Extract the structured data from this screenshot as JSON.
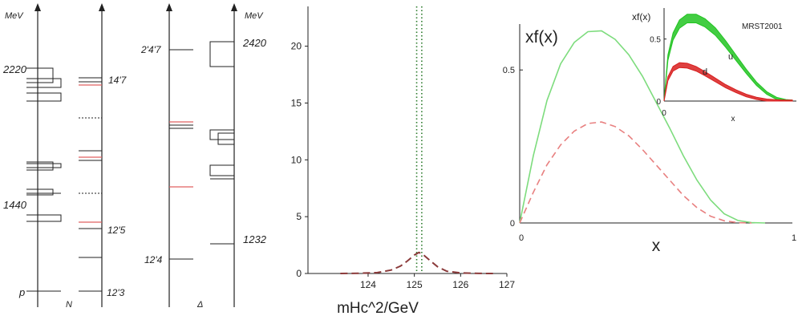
{
  "colors": {
    "ink": "#222222",
    "red_level": "#e06060",
    "green_dotted": "#2a7a2a",
    "dashed_peak": "#8b3a3a",
    "u_curve": "#7ddc7d",
    "d_curve": "#e88080",
    "inset_u": "#22c422",
    "inset_d": "#d81f1f"
  },
  "chart_data": [
    {
      "type": "table",
      "name": "nucleon-spectrum",
      "labels": {
        "unit": "MeV",
        "level_2220": "2220",
        "level_1440": "1440",
        "proton": "p",
        "axis_bottom": "N",
        "level_1447": "14'7",
        "level_125": "12'5",
        "level_123": "12'3"
      },
      "left_levels_mev": [
        2210,
        2170,
        2150,
        1830,
        1825,
        1410,
        1400
      ],
      "right_levels_black_mev": [
        2200,
        2190,
        1880,
        1850,
        1590
      ],
      "right_levels_red_mev": [
        2170,
        1860,
        1470
      ],
      "right_levels_dotted_mev": [
        2050,
        1640
      ]
    },
    {
      "type": "table",
      "name": "delta-spectrum",
      "labels": {
        "unit": "MeV",
        "level_2420": "2420",
        "level_1232": "1232",
        "axis_bottom": "Δ",
        "level_247": "2'4'7",
        "level_124": "12'4"
      },
      "left_levels_black_mev": [
        2400,
        1970,
        1962
      ],
      "left_levels_red_mev": [
        1985,
        1700
      ],
      "right_levels_mev": [
        2440,
        2270,
        1950,
        1925,
        1860,
        1830,
        1790,
        1250
      ]
    },
    {
      "type": "line",
      "name": "higgs-mass-peak",
      "xlabel": "mHc^2/GeV",
      "xlim": [
        122.7,
        127.0
      ],
      "ylim": [
        0,
        23.5
      ],
      "xticks": [
        124,
        125,
        126,
        127
      ],
      "yticks": [
        0,
        5,
        10,
        15,
        20
      ],
      "vertical_lines": [
        125.05,
        125.16
      ],
      "series": [
        {
          "style": "dashed",
          "x": [
            123.4,
            123.8,
            124.2,
            124.5,
            124.7,
            124.85,
            125.0,
            125.1,
            125.2,
            125.35,
            125.5,
            125.7,
            126.0,
            126.4,
            126.7
          ],
          "y": [
            0,
            0.02,
            0.08,
            0.3,
            0.65,
            1.1,
            1.62,
            1.85,
            1.62,
            1.1,
            0.6,
            0.2,
            0.05,
            0.01,
            0
          ]
        }
      ]
    },
    {
      "type": "line",
      "name": "parton-distributions",
      "ylabel": "xf(x)",
      "xlabel": "x",
      "xlim": [
        0,
        1
      ],
      "ylim": [
        0,
        0.65
      ],
      "xticks": [
        "0",
        "1"
      ],
      "yticks": [
        "0",
        "0.5"
      ],
      "series": [
        {
          "style": "solid",
          "x": [
            0,
            0.05,
            0.1,
            0.15,
            0.2,
            0.25,
            0.3,
            0.35,
            0.4,
            0.45,
            0.5,
            0.55,
            0.6,
            0.65,
            0.7,
            0.75,
            0.8,
            0.85,
            0.9
          ],
          "y": [
            0,
            0.22,
            0.4,
            0.52,
            0.59,
            0.625,
            0.628,
            0.6,
            0.55,
            0.48,
            0.395,
            0.31,
            0.22,
            0.14,
            0.075,
            0.03,
            0.008,
            0.001,
            0
          ]
        },
        {
          "style": "dashed",
          "x": [
            0,
            0.05,
            0.1,
            0.15,
            0.2,
            0.25,
            0.3,
            0.35,
            0.4,
            0.45,
            0.5,
            0.55,
            0.6,
            0.65,
            0.7,
            0.75,
            0.8,
            0.85
          ],
          "y": [
            0,
            0.1,
            0.19,
            0.255,
            0.3,
            0.325,
            0.33,
            0.315,
            0.285,
            0.24,
            0.19,
            0.14,
            0.09,
            0.05,
            0.022,
            0.007,
            0.001,
            0
          ]
        }
      ]
    },
    {
      "type": "area",
      "name": "mrst2001-inset",
      "title": "MRST2001",
      "ylabel": "xf(x)",
      "xlabel": "x",
      "xlim": [
        0,
        1
      ],
      "ylim": [
        0,
        0.75
      ],
      "yticks": [
        "0",
        "0.5"
      ],
      "xticks": [
        "0"
      ],
      "series": [
        {
          "name": "u",
          "x": [
            0,
            0.03,
            0.07,
            0.12,
            0.18,
            0.25,
            0.32,
            0.4,
            0.48,
            0.56,
            0.64,
            0.72,
            0.8,
            0.88,
            0.95,
            1.0
          ],
          "y": [
            0,
            0.35,
            0.52,
            0.62,
            0.665,
            0.665,
            0.63,
            0.56,
            0.46,
            0.35,
            0.24,
            0.14,
            0.065,
            0.02,
            0.004,
            0
          ]
        },
        {
          "name": "d",
          "x": [
            0,
            0.03,
            0.07,
            0.12,
            0.18,
            0.25,
            0.32,
            0.4,
            0.48,
            0.56,
            0.64,
            0.72,
            0.8,
            0.88,
            0.95,
            1.0
          ],
          "y": [
            0,
            0.18,
            0.26,
            0.29,
            0.285,
            0.26,
            0.22,
            0.17,
            0.12,
            0.08,
            0.045,
            0.022,
            0.008,
            0.002,
            0,
            0
          ]
        }
      ]
    }
  ]
}
